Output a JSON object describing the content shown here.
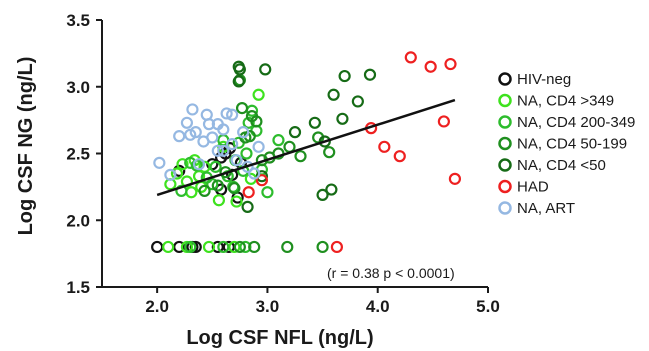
{
  "chart_data": {
    "type": "scatter",
    "xlabel": "Log CSF NFL (ng/L)",
    "ylabel": "Log CSF NG (ng/L)",
    "xlim": [
      1.5,
      5.0
    ],
    "ylim": [
      1.5,
      3.5
    ],
    "x_ticks": [
      "2.0",
      "3.0",
      "4.0",
      "5.0"
    ],
    "y_ticks": [
      "1.5",
      "2.0",
      "2.5",
      "3.0",
      "3.5"
    ],
    "grid": false,
    "legend_position": "right",
    "annotation": "(r = 0.38  p < 0.0001)",
    "regression_line": {
      "x": [
        2.0,
        4.7
      ],
      "y": [
        2.19,
        2.9
      ]
    },
    "series": [
      {
        "name": "HIV-neg",
        "color": "#111111",
        "points": [
          [
            2.0,
            1.8
          ],
          [
            2.2,
            1.8
          ],
          [
            2.32,
            1.8
          ],
          [
            2.35,
            1.8
          ],
          [
            2.55,
            1.8
          ],
          [
            2.65,
            1.8
          ],
          [
            2.2,
            2.37
          ],
          [
            2.5,
            2.42
          ],
          [
            2.58,
            2.47
          ],
          [
            2.62,
            2.5
          ],
          [
            2.66,
            2.54
          ],
          [
            2.68,
            2.34
          ],
          [
            2.73,
            2.17
          ],
          [
            2.58,
            2.23
          ],
          [
            2.76,
            2.43
          ]
        ]
      },
      {
        "name": "NA, CD4 >349",
        "color": "#3ee21e",
        "points": [
          [
            2.1,
            1.8
          ],
          [
            2.27,
            1.8
          ],
          [
            2.47,
            1.8
          ],
          [
            2.7,
            1.8
          ],
          [
            2.12,
            2.27
          ],
          [
            2.18,
            2.35
          ],
          [
            2.23,
            2.42
          ],
          [
            2.27,
            2.29
          ],
          [
            2.31,
            2.21
          ],
          [
            2.34,
            2.45
          ],
          [
            2.38,
            2.33
          ],
          [
            2.43,
            2.4
          ],
          [
            2.56,
            2.15
          ],
          [
            2.6,
            2.55
          ],
          [
            2.72,
            2.14
          ],
          [
            2.85,
            2.31
          ],
          [
            2.92,
            2.94
          ],
          [
            2.4,
            2.25
          ]
        ]
      },
      {
        "name": "NA, CD4 200-349",
        "color": "#2dbc2d",
        "points": [
          [
            2.3,
            1.8
          ],
          [
            2.6,
            1.8
          ],
          [
            2.8,
            1.8
          ],
          [
            2.22,
            2.22
          ],
          [
            2.3,
            2.43
          ],
          [
            2.36,
            2.41
          ],
          [
            2.45,
            2.32
          ],
          [
            2.5,
            2.27
          ],
          [
            2.53,
            2.4
          ],
          [
            2.6,
            2.6
          ],
          [
            2.64,
            2.33
          ],
          [
            2.71,
            2.45
          ],
          [
            2.74,
            2.58
          ],
          [
            2.78,
            2.37
          ],
          [
            2.81,
            2.5
          ],
          [
            2.83,
            2.73
          ],
          [
            2.86,
            2.82
          ],
          [
            2.9,
            2.67
          ],
          [
            2.95,
            2.38
          ],
          [
            3.0,
            2.21
          ],
          [
            3.1,
            2.6
          ],
          [
            2.69,
            2.25
          ]
        ]
      },
      {
        "name": "NA, CD4 50-199",
        "color": "#1f8f1f",
        "points": [
          [
            2.75,
            1.8
          ],
          [
            2.88,
            1.8
          ],
          [
            3.18,
            1.8
          ],
          [
            3.5,
            1.8
          ],
          [
            2.43,
            2.22
          ],
          [
            2.55,
            2.26
          ],
          [
            2.62,
            2.36
          ],
          [
            2.7,
            2.24
          ],
          [
            2.77,
            2.84
          ],
          [
            2.8,
            2.62
          ],
          [
            2.84,
            2.63
          ],
          [
            2.9,
            2.74
          ],
          [
            2.95,
            2.45
          ],
          [
            3.02,
            2.47
          ],
          [
            3.1,
            2.5
          ],
          [
            3.2,
            2.55
          ],
          [
            3.3,
            2.48
          ],
          [
            3.46,
            2.62
          ],
          [
            3.56,
            2.51
          ],
          [
            2.75,
            3.05
          ],
          [
            2.86,
            2.78
          ]
        ]
      },
      {
        "name": "NA, CD4 <50",
        "color": "#166b16",
        "points": [
          [
            2.74,
            3.15
          ],
          [
            2.75,
            3.13
          ],
          [
            2.74,
            3.04
          ],
          [
            2.98,
            3.13
          ],
          [
            3.43,
            2.73
          ],
          [
            3.52,
            2.59
          ],
          [
            3.6,
            2.94
          ],
          [
            3.68,
            2.76
          ],
          [
            3.7,
            3.08
          ],
          [
            3.82,
            2.89
          ],
          [
            3.93,
            3.09
          ],
          [
            3.5,
            2.19
          ],
          [
            3.58,
            2.23
          ],
          [
            3.25,
            2.66
          ],
          [
            2.82,
            2.1
          ],
          [
            2.95,
            2.33
          ]
        ]
      },
      {
        "name": "HAD",
        "color": "#ee2020",
        "points": [
          [
            3.63,
            1.8
          ],
          [
            2.95,
            2.3
          ],
          [
            2.83,
            2.21
          ],
          [
            3.94,
            2.69
          ],
          [
            4.06,
            2.55
          ],
          [
            4.2,
            2.48
          ],
          [
            4.3,
            3.22
          ],
          [
            4.48,
            3.15
          ],
          [
            4.6,
            2.74
          ],
          [
            4.66,
            3.17
          ],
          [
            4.7,
            2.31
          ]
        ]
      },
      {
        "name": "NA, ART",
        "color": "#95b8e2",
        "points": [
          [
            2.02,
            2.43
          ],
          [
            2.12,
            2.34
          ],
          [
            2.2,
            2.63
          ],
          [
            2.27,
            2.73
          ],
          [
            2.3,
            2.64
          ],
          [
            2.32,
            2.83
          ],
          [
            2.38,
            2.42
          ],
          [
            2.42,
            2.59
          ],
          [
            2.47,
            2.72
          ],
          [
            2.5,
            2.62
          ],
          [
            2.55,
            2.52
          ],
          [
            2.6,
            2.68
          ],
          [
            2.63,
            2.8
          ],
          [
            2.68,
            2.57
          ],
          [
            2.72,
            2.45
          ],
          [
            2.78,
            2.66
          ],
          [
            2.82,
            2.4
          ],
          [
            2.88,
            2.35
          ],
          [
            2.92,
            2.55
          ],
          [
            2.45,
            2.79
          ],
          [
            2.6,
            2.52
          ],
          [
            2.35,
            2.66
          ],
          [
            2.55,
            2.72
          ],
          [
            2.68,
            2.79
          ]
        ]
      }
    ]
  }
}
